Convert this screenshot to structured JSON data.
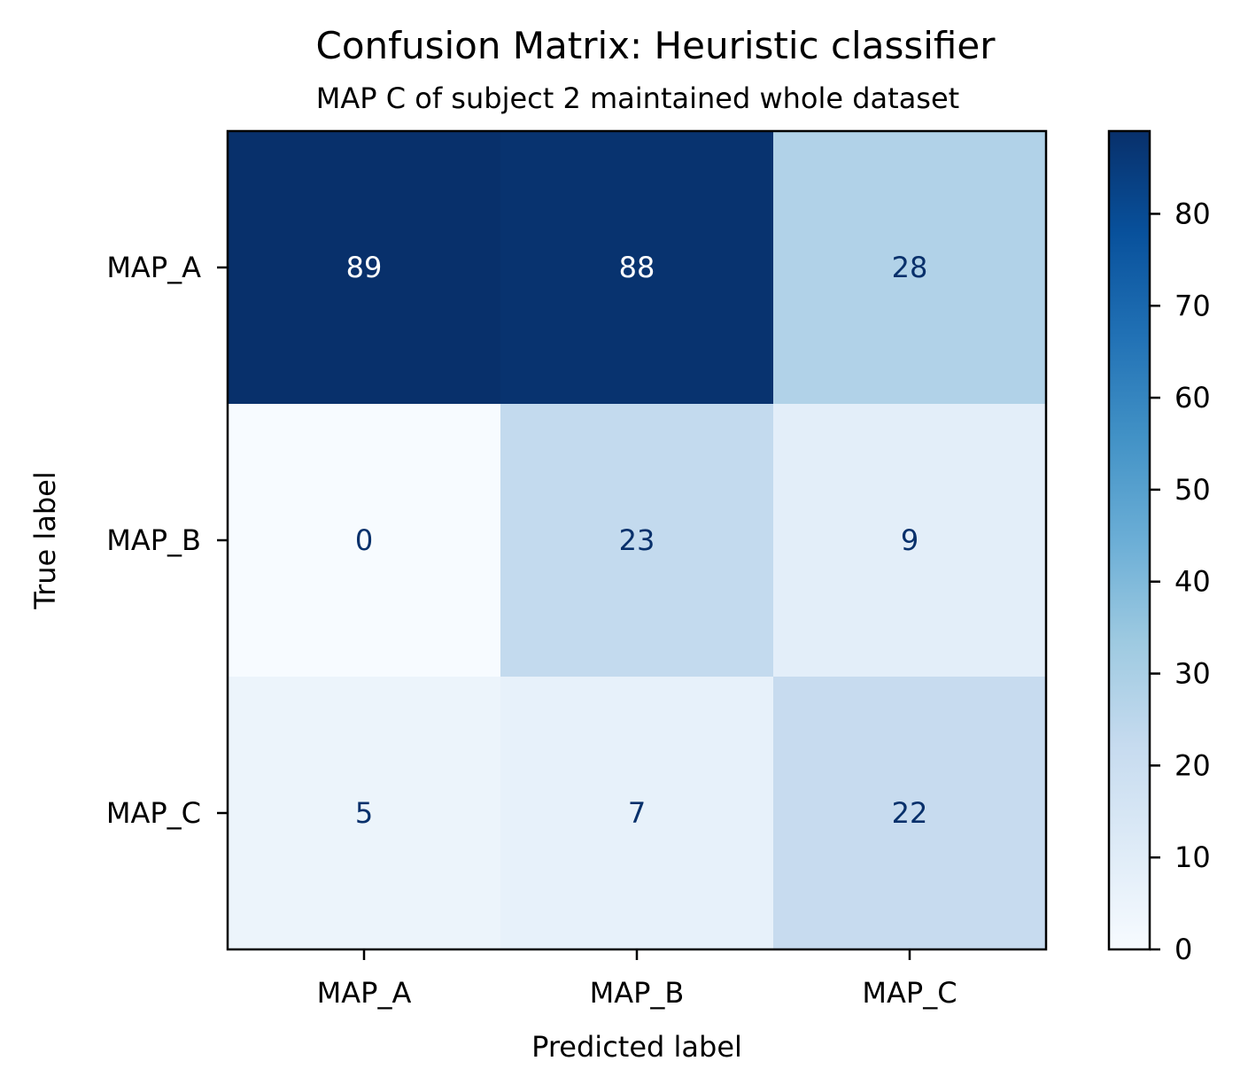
{
  "chart_data": {
    "type": "heatmap",
    "title": "Confusion Matrix: Heuristic classifier",
    "subtitle": "MAP C of subject 2 maintained whole dataset",
    "xlabel": "Predicted label",
    "ylabel": "True label",
    "x_categories": [
      "MAP_A",
      "MAP_B",
      "MAP_C"
    ],
    "y_categories": [
      "MAP_A",
      "MAP_B",
      "MAP_C"
    ],
    "values": [
      [
        89,
        88,
        28
      ],
      [
        0,
        23,
        9
      ],
      [
        5,
        7,
        22
      ]
    ],
    "colormap": "Blues",
    "colorbar": {
      "range": [
        0,
        89
      ],
      "ticks": [
        0,
        10,
        20,
        30,
        40,
        50,
        60,
        70,
        80
      ],
      "tick_labels": [
        "0",
        "10",
        "20",
        "30",
        "40",
        "50",
        "60",
        "70",
        "80"
      ]
    },
    "cell_text_colors": {
      "dark": "#08306b",
      "light": "#ffffff"
    }
  }
}
